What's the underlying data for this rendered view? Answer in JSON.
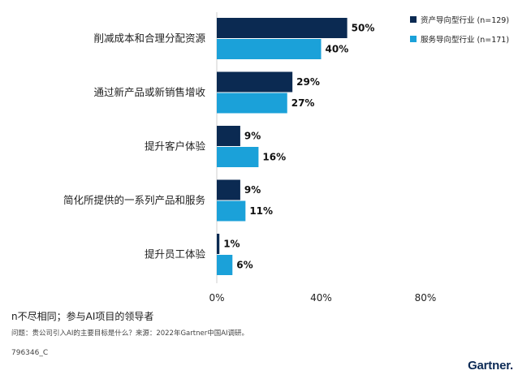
{
  "chart_data": {
    "type": "bar",
    "orientation": "horizontal",
    "categories": [
      "削减成本和合理分配资源",
      "通过新产品或新销售增收",
      "提升客户体验",
      "简化所提供的一系列产品和服务",
      "提升员工体验"
    ],
    "series": [
      {
        "name": "资产导向型行业 (n=129)",
        "values": [
          50,
          29,
          9,
          9,
          1
        ],
        "labels": [
          "50%",
          "29%",
          "9%",
          "9%",
          "1%"
        ],
        "color": "#0b2a52"
      },
      {
        "name": "服务导向型行业 (n=171)",
        "values": [
          40,
          27,
          16,
          11,
          6
        ],
        "labels": [
          "40%",
          "27%",
          "16%",
          "11%",
          "6%"
        ],
        "color": "#1ba1d9"
      }
    ],
    "xlim": [
      0,
      80
    ],
    "xticks": [
      0,
      40,
      80
    ],
    "xtick_labels": [
      "0%",
      "40%",
      "80%"
    ],
    "grid": false,
    "legend_position": "top-right"
  },
  "footer": {
    "note": "n不尽相同；参与AI项目的领导者",
    "source": "问题：贵公司引入AI的主要目标是什么？来源：2022年Gartner中国AI调研。",
    "id": "796346_C"
  },
  "brand": {
    "name": "Gartner"
  }
}
